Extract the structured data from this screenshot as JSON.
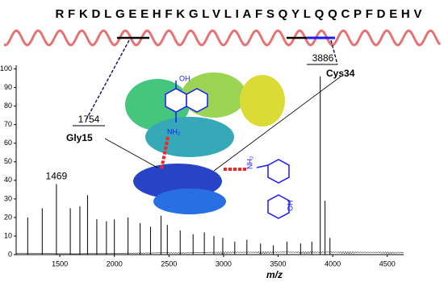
{
  "chart_data": {
    "type": "stem",
    "sequence": "RFKDLGEEHFKGLVLIAFSQYLQQCPFDEHV",
    "x_label": "m/z",
    "x": [
      1206,
      1339,
      1469,
      1596,
      1684,
      1754,
      1839,
      1927,
      2000,
      2125,
      2236,
      2331,
      2427,
      2485,
      2603,
      2721,
      2824,
      2912,
      2993,
      3103,
      3214,
      3339,
      3456,
      3581,
      3706,
      3809,
      3886,
      3930,
      3975
    ],
    "values": [
      20,
      25,
      38,
      25,
      26,
      32,
      19,
      18,
      19,
      20,
      17,
      15,
      21,
      16,
      13,
      11,
      12,
      10,
      9,
      7,
      8,
      6,
      5,
      7,
      6,
      7,
      96,
      29,
      9
    ],
    "color": "#000000",
    "annotations": [
      "Gly15",
      "Cys34"
    ],
    "chem_labels": [
      "OH",
      "NH₂",
      "NH₂",
      "OH"
    ],
    "xlim": [
      1100,
      4650
    ],
    "xticks": [
      1500,
      2000,
      2500,
      3000,
      3500,
      4000,
      4500
    ],
    "ylim": [
      0,
      102
    ],
    "yticks": [
      0,
      10,
      20,
      30,
      40,
      50,
      60,
      70,
      80,
      90,
      100
    ]
  }
}
